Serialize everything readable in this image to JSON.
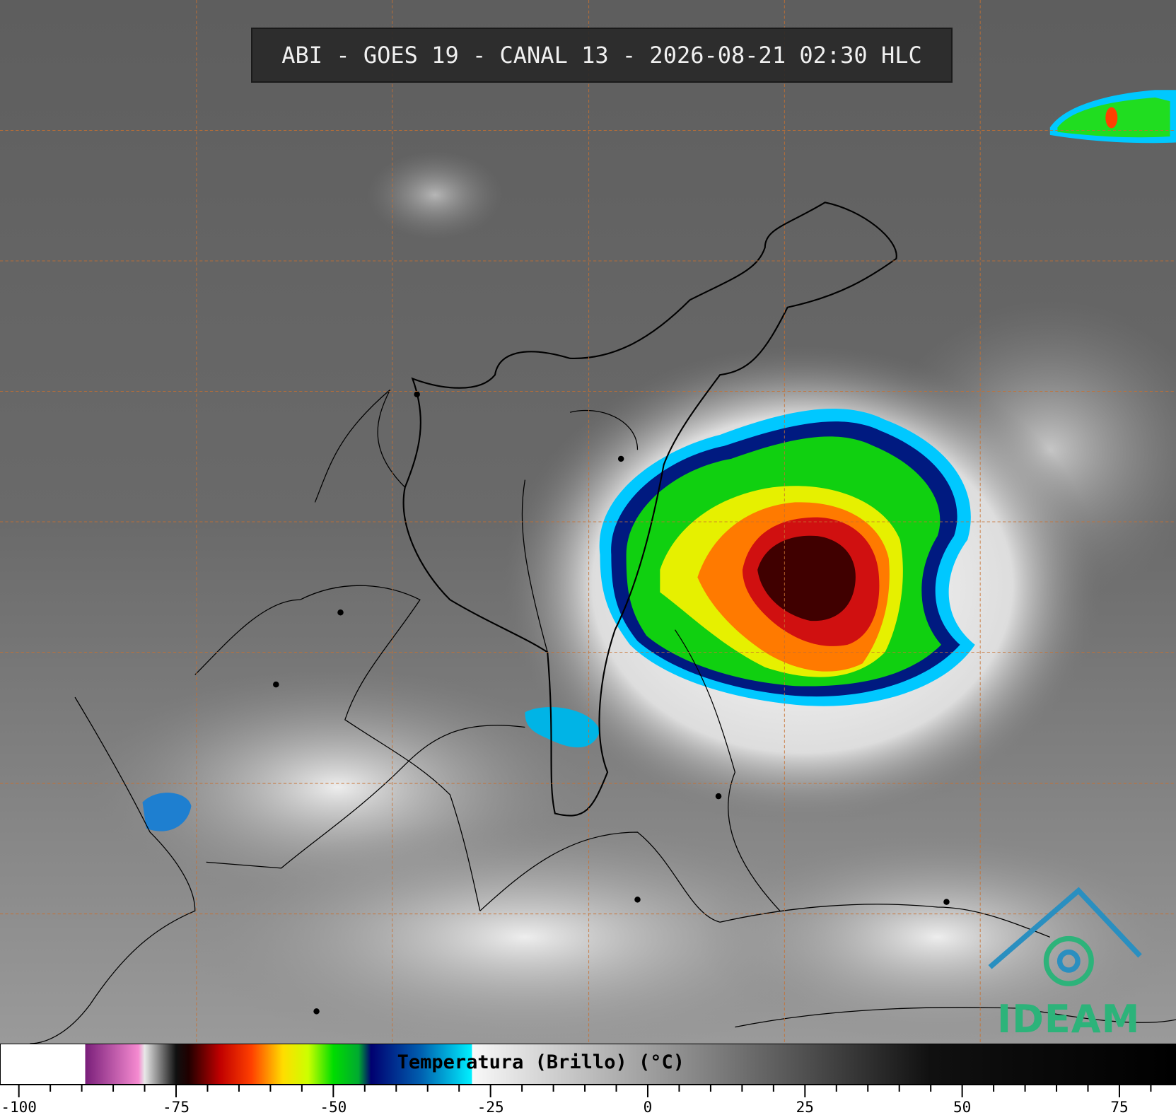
{
  "header": {
    "title": "ABI - GOES 19 - CANAL 13 - 2026-08-21 02:30 HLC"
  },
  "logo": {
    "text": "IDEAM"
  },
  "colorbar": {
    "label": "Temperatura (Brillo) (°C)",
    "xlim": [
      -103,
      84
    ],
    "ticks": [
      -100,
      -75,
      -50,
      -25,
      0,
      25,
      50,
      75
    ],
    "minor_ticks": [
      -95,
      -90,
      -85,
      -80,
      -70,
      -65,
      -60,
      -55,
      -45,
      -40,
      -35,
      -30,
      -20,
      -15,
      -10,
      -5,
      5,
      10,
      15,
      20,
      30,
      35,
      40,
      45,
      55,
      60,
      65,
      70,
      80
    ],
    "colormap": [
      {
        "value": -103,
        "color": "#ffffff"
      },
      {
        "value": -89.5,
        "color": "#ffffff"
      },
      {
        "value": -89.4,
        "color": "#7a1f7a"
      },
      {
        "value": -81,
        "color": "#f58ad0"
      },
      {
        "value": -80,
        "color": "#e8e8e8"
      },
      {
        "value": -75,
        "color": "#101010"
      },
      {
        "value": -73,
        "color": "#200000"
      },
      {
        "value": -68,
        "color": "#c00000"
      },
      {
        "value": -63,
        "color": "#ff4000"
      },
      {
        "value": -58,
        "color": "#ffdd00"
      },
      {
        "value": -54,
        "color": "#ccff00"
      },
      {
        "value": -50,
        "color": "#00dd00"
      },
      {
        "value": -46,
        "color": "#00aa30"
      },
      {
        "value": -44,
        "color": "#000070"
      },
      {
        "value": -36,
        "color": "#0060b0"
      },
      {
        "value": -28,
        "color": "#00f0ff"
      },
      {
        "value": -27.9,
        "color": "#f8f8f8"
      },
      {
        "value": 45,
        "color": "#101010"
      },
      {
        "value": 84,
        "color": "#000000"
      }
    ]
  }
}
